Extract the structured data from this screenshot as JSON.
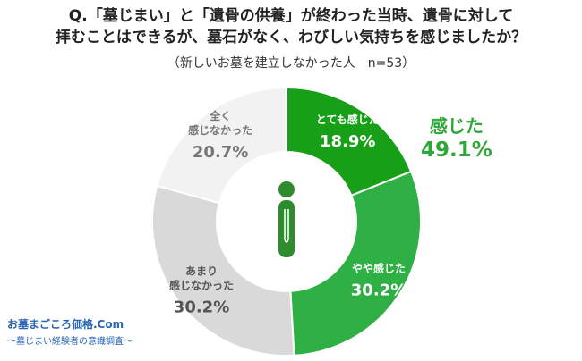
{
  "title_line1": "Q.「墓じまい」と「遺骨の供養」が終わった当時、遺骨に対して",
  "title_line2": "拝むことはできるが、墓石がなく、わびしい気持ちを感じましたか？",
  "subtitle": "（新しいお墓を建立しなかった人　n=53）",
  "highlight": {
    "label": "感じた",
    "value": "49.1%"
  },
  "logo": {
    "line1": "お墓まごころ価格.Com",
    "line2": "～墓じまい経験者の意識調査～"
  },
  "colors": {
    "dark_green": "#17a017",
    "mid_green": "#2fb044",
    "light_gray": "#d9d9d9",
    "pale_gray": "#f2f2f2",
    "highlight_green": "#2fa63a",
    "icon_green": "#2e8b2e"
  },
  "chart_data": {
    "type": "pie",
    "donut": true,
    "slices": [
      {
        "label_lines": [
          "とても感じた"
        ],
        "value": 18.9,
        "value_text": "18.9%",
        "color": "#17a017",
        "text_color": "#ffffff"
      },
      {
        "label_lines": [
          "やや感じた"
        ],
        "value": 30.2,
        "value_text": "30.2%",
        "color": "#2fb044",
        "text_color": "#ffffff"
      },
      {
        "label_lines": [
          "あまり",
          "感じなかった"
        ],
        "value": 30.2,
        "value_text": "30.2%",
        "color": "#d9d9d9",
        "text_color": "#555555"
      },
      {
        "label_lines": [
          "全く",
          "感じなかった"
        ],
        "value": 20.7,
        "value_text": "20.7%",
        "color": "#f2f2f2",
        "text_color": "#777777"
      }
    ]
  }
}
